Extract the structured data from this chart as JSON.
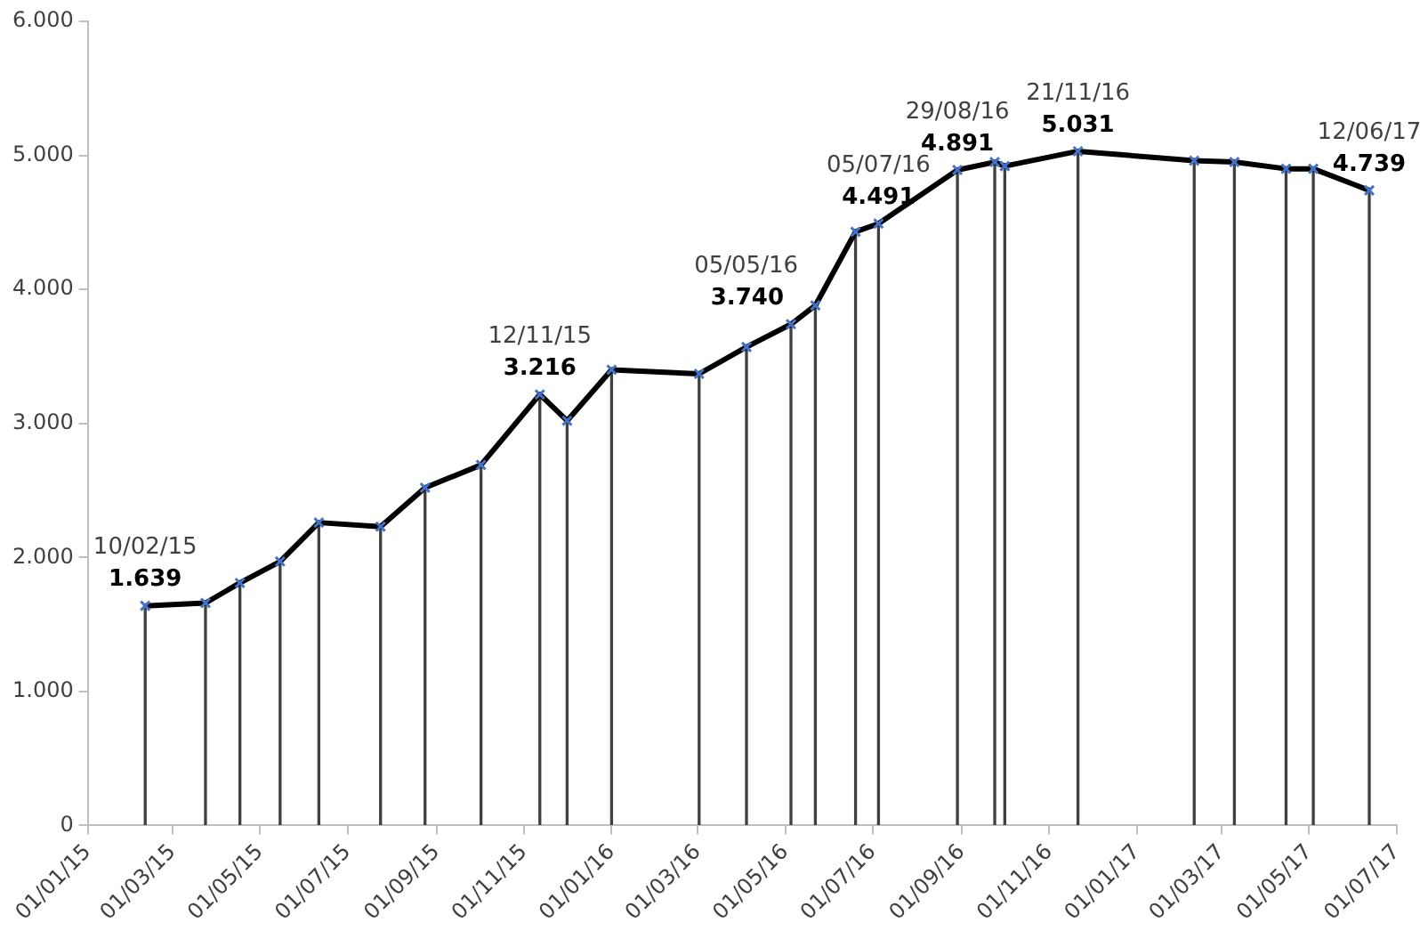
{
  "chart_data": {
    "type": "line",
    "x": [
      "2015-02-10",
      "2015-03-24",
      "2015-04-17",
      "2015-05-15",
      "2015-06-11",
      "2015-07-24",
      "2015-08-24",
      "2015-10-02",
      "2015-11-12",
      "2015-12-01",
      "2016-01-01",
      "2016-03-02",
      "2016-04-04",
      "2016-05-05",
      "2016-05-22",
      "2016-06-19",
      "2016-07-05",
      "2016-08-29",
      "2016-09-24",
      "2016-10-01",
      "2016-11-21",
      "2017-02-10",
      "2017-03-10",
      "2017-04-15",
      "2017-05-04",
      "2017-06-12"
    ],
    "series": [
      {
        "color": "#000000",
        "values": [
          1639,
          1660,
          1810,
          1970,
          2260,
          2230,
          2520,
          2690,
          3216,
          3020,
          3400,
          3370,
          3570,
          3740,
          3880,
          4430,
          4491,
          4891,
          4950,
          4920,
          5031,
          4960,
          4950,
          4900,
          4900,
          4739
        ],
        "value_labels": [
          "1.639",
          null,
          null,
          null,
          null,
          null,
          null,
          null,
          "3.216",
          null,
          null,
          null,
          null,
          "3.740",
          null,
          null,
          "4.491",
          "4.891",
          null,
          null,
          "5.031",
          null,
          null,
          null,
          null,
          "4.739"
        ]
      },
      {
        "type": "bar",
        "color": "#404040",
        "values": [
          1639,
          1660,
          1810,
          1970,
          2260,
          2230,
          2520,
          2690,
          3216,
          3020,
          3400,
          3370,
          3570,
          3740,
          3880,
          4430,
          4491,
          4891,
          4950,
          4920,
          5031,
          4960,
          4950,
          4900,
          4900,
          4739
        ]
      }
    ],
    "annotations": [
      {
        "text": "10/02/15",
        "x": "2015-02-10",
        "y": 1639
      },
      {
        "text": "12/11/15",
        "x": "2015-11-12",
        "y": 3216
      },
      {
        "text": "05/05/16",
        "x": "2016-05-05",
        "y": 3740
      },
      {
        "text": "05/07/16",
        "x": "2016-07-05",
        "y": 4491
      },
      {
        "text": "29/08/16",
        "x": "2016-08-29",
        "y": 4891
      },
      {
        "text": "21/11/16",
        "x": "2016-11-21",
        "y": 5031
      },
      {
        "text": "12/06/17",
        "x": "2017-06-12",
        "y": 4739
      }
    ],
    "xlim": [
      "2015-01-01",
      "2017-07-01"
    ],
    "xticks": [
      {
        "value": "2015-01-01",
        "label": "01/01/15"
      },
      {
        "value": "2015-03-01",
        "label": "01/03/15"
      },
      {
        "value": "2015-05-01",
        "label": "01/05/15"
      },
      {
        "value": "2015-07-01",
        "label": "01/07/15"
      },
      {
        "value": "2015-09-01",
        "label": "01/09/15"
      },
      {
        "value": "2015-11-01",
        "label": "01/11/15"
      },
      {
        "value": "2016-01-01",
        "label": "01/01/16"
      },
      {
        "value": "2016-03-01",
        "label": "01/03/16"
      },
      {
        "value": "2016-05-01",
        "label": "01/05/16"
      },
      {
        "value": "2016-07-01",
        "label": "01/07/16"
      },
      {
        "value": "2016-09-01",
        "label": "01/09/16"
      },
      {
        "value": "2016-11-01",
        "label": "01/11/16"
      },
      {
        "value": "2017-01-01",
        "label": "01/01/17"
      },
      {
        "value": "2017-03-01",
        "label": "01/03/17"
      },
      {
        "value": "2017-05-01",
        "label": "01/05/17"
      },
      {
        "value": "2017-07-01",
        "label": "01/07/17"
      }
    ],
    "ylim": [
      0,
      6000
    ],
    "yticks": [
      0,
      {
        "value": 1000,
        "label": "1.000"
      },
      {
        "value": 2000,
        "label": "2.000"
      },
      {
        "value": 3000,
        "label": "3.000"
      },
      {
        "value": 4000,
        "label": "4.000"
      },
      {
        "value": 5000,
        "label": "5.000"
      },
      {
        "value": 6000,
        "label": "6.000"
      }
    ],
    "legend": false,
    "marker": "cross",
    "line_style": "solid"
  }
}
